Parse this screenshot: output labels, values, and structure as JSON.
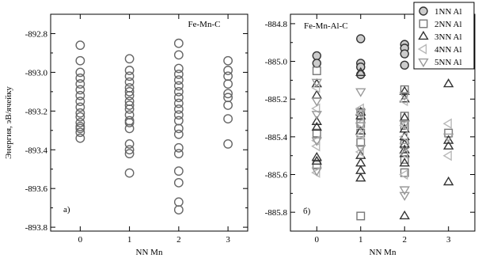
{
  "chart_data": [
    {
      "type": "scatter",
      "panel_label": "a)",
      "title": "Fe-Mn-C",
      "xlabel": "NN Mn",
      "ylabel": "Энергия, эВ/ячейку",
      "xlim": [
        -0.6,
        3.4
      ],
      "ylim": [
        -893.82,
        -892.7
      ],
      "xticks": [
        0,
        1,
        2,
        3
      ],
      "yticks": [
        -892.8,
        -893.0,
        -893.2,
        -893.4,
        -893.6,
        -893.8
      ],
      "ytick_labels": [
        "-892.8",
        "-893.0",
        "-893.2",
        "-893.4",
        "-893.6",
        "-893.8"
      ],
      "grid": false,
      "series": [
        {
          "marker": "circle",
          "color": "#666666",
          "fill": "none",
          "x": [
            0,
            0,
            0,
            0,
            0,
            0,
            0,
            0,
            0,
            0,
            0,
            0,
            0,
            0,
            0,
            0,
            1,
            1,
            1,
            1,
            1,
            1,
            1,
            1,
            1,
            1,
            1,
            1,
            1,
            1,
            1,
            1,
            1,
            1,
            2,
            2,
            2,
            2,
            2,
            2,
            2,
            2,
            2,
            2,
            2,
            2,
            2,
            2,
            2,
            2,
            2,
            2,
            2,
            2,
            3,
            3,
            3,
            3,
            3,
            3,
            3,
            3,
            3
          ],
          "y": [
            -892.86,
            -892.94,
            -893.0,
            -893.03,
            -893.06,
            -893.09,
            -893.12,
            -893.15,
            -893.18,
            -893.21,
            -893.23,
            -893.26,
            -893.28,
            -893.29,
            -893.31,
            -893.34,
            -892.93,
            -892.99,
            -893.02,
            -893.05,
            -893.08,
            -893.1,
            -893.12,
            -893.15,
            -893.17,
            -893.19,
            -893.22,
            -893.25,
            -893.26,
            -893.29,
            -893.37,
            -893.4,
            -893.42,
            -893.52,
            -892.85,
            -892.91,
            -892.98,
            -893.01,
            -893.04,
            -893.07,
            -893.1,
            -893.13,
            -893.16,
            -893.19,
            -893.22,
            -893.25,
            -893.29,
            -893.32,
            -893.39,
            -893.42,
            -893.51,
            -893.67,
            -893.71,
            -893.57,
            -892.94,
            -892.99,
            -893.02,
            -893.06,
            -893.11,
            -893.13,
            -893.17,
            -893.24,
            -893.37
          ]
        }
      ]
    },
    {
      "type": "scatter",
      "panel_label": "б)",
      "title": "Fe-Mn-Al-C",
      "xlabel": "NN Mn",
      "ylabel": "",
      "xlim": [
        -0.6,
        3.6
      ],
      "ylim": [
        -885.9,
        -884.75
      ],
      "xticks": [
        0,
        1,
        2,
        3
      ],
      "yticks": [
        -884.8,
        -885.0,
        -885.2,
        -885.4,
        -885.6,
        -885.8
      ],
      "ytick_labels": [
        "-884.8",
        "-885.0",
        "-885.2",
        "-885.4",
        "-885.6",
        "-885.8"
      ],
      "grid": false,
      "legend_position": "top-right",
      "series": [
        {
          "name": "1NN Al",
          "marker": "circle",
          "color": "#333333",
          "fill": "#cccccc",
          "x": [
            0,
            0,
            1,
            1,
            1,
            1,
            2,
            2,
            2,
            2
          ],
          "y": [
            -884.97,
            -885.01,
            -884.88,
            -885.01,
            -885.03,
            -885.07,
            -884.91,
            -884.93,
            -884.96,
            -885.02
          ]
        },
        {
          "name": "2NN Al",
          "marker": "square",
          "color": "#777777",
          "fill": "none",
          "x": [
            0,
            0,
            0,
            1,
            1,
            1,
            1,
            1,
            2,
            2,
            2,
            2,
            2,
            2,
            3
          ],
          "y": [
            -885.38,
            -885.55,
            -885.05,
            -885.27,
            -885.33,
            -885.38,
            -885.43,
            -885.82,
            -885.15,
            -885.29,
            -885.34,
            -885.44,
            -885.52,
            -885.59,
            -885.38
          ]
        },
        {
          "name": "3NN Al",
          "marker": "triangle-up",
          "color": "#333333",
          "fill": "none",
          "x": [
            0,
            0,
            0,
            0,
            0,
            0,
            1,
            1,
            1,
            1,
            1,
            1,
            1,
            1,
            2,
            2,
            2,
            2,
            2,
            2,
            2,
            2,
            2,
            2,
            3,
            3,
            3,
            3
          ],
          "y": [
            -885.12,
            -885.18,
            -885.32,
            -885.35,
            -885.51,
            -885.53,
            -885.06,
            -885.27,
            -885.29,
            -885.37,
            -885.5,
            -885.54,
            -885.58,
            -885.62,
            -885.16,
            -885.2,
            -885.3,
            -885.36,
            -885.4,
            -885.44,
            -885.47,
            -885.49,
            -885.54,
            -885.82,
            -885.12,
            -885.42,
            -885.45,
            -885.64
          ]
        },
        {
          "name": "4NN Al",
          "marker": "triangle-left",
          "color": "#b8b8b8",
          "fill": "none",
          "x": [
            0,
            0,
            0,
            0,
            0,
            1,
            1,
            1,
            1,
            1,
            2,
            2,
            2,
            2,
            2,
            3,
            3
          ],
          "y": [
            -885.14,
            -885.25,
            -885.42,
            -885.45,
            -885.59,
            -885.25,
            -885.28,
            -885.33,
            -885.39,
            -885.48,
            -885.21,
            -885.34,
            -885.4,
            -885.49,
            -885.6,
            -885.33,
            -885.5
          ]
        },
        {
          "name": "5NN Al",
          "marker": "triangle-down",
          "color": "#999999",
          "fill": "none",
          "x": [
            0,
            0,
            0,
            0,
            0,
            1,
            1,
            1,
            1,
            2,
            2,
            2,
            2,
            2,
            3
          ],
          "y": [
            -885.11,
            -885.21,
            -885.28,
            -885.42,
            -885.58,
            -885.16,
            -885.27,
            -885.34,
            -885.46,
            -885.18,
            -885.33,
            -885.45,
            -885.68,
            -885.71,
            -885.4
          ]
        }
      ]
    }
  ]
}
